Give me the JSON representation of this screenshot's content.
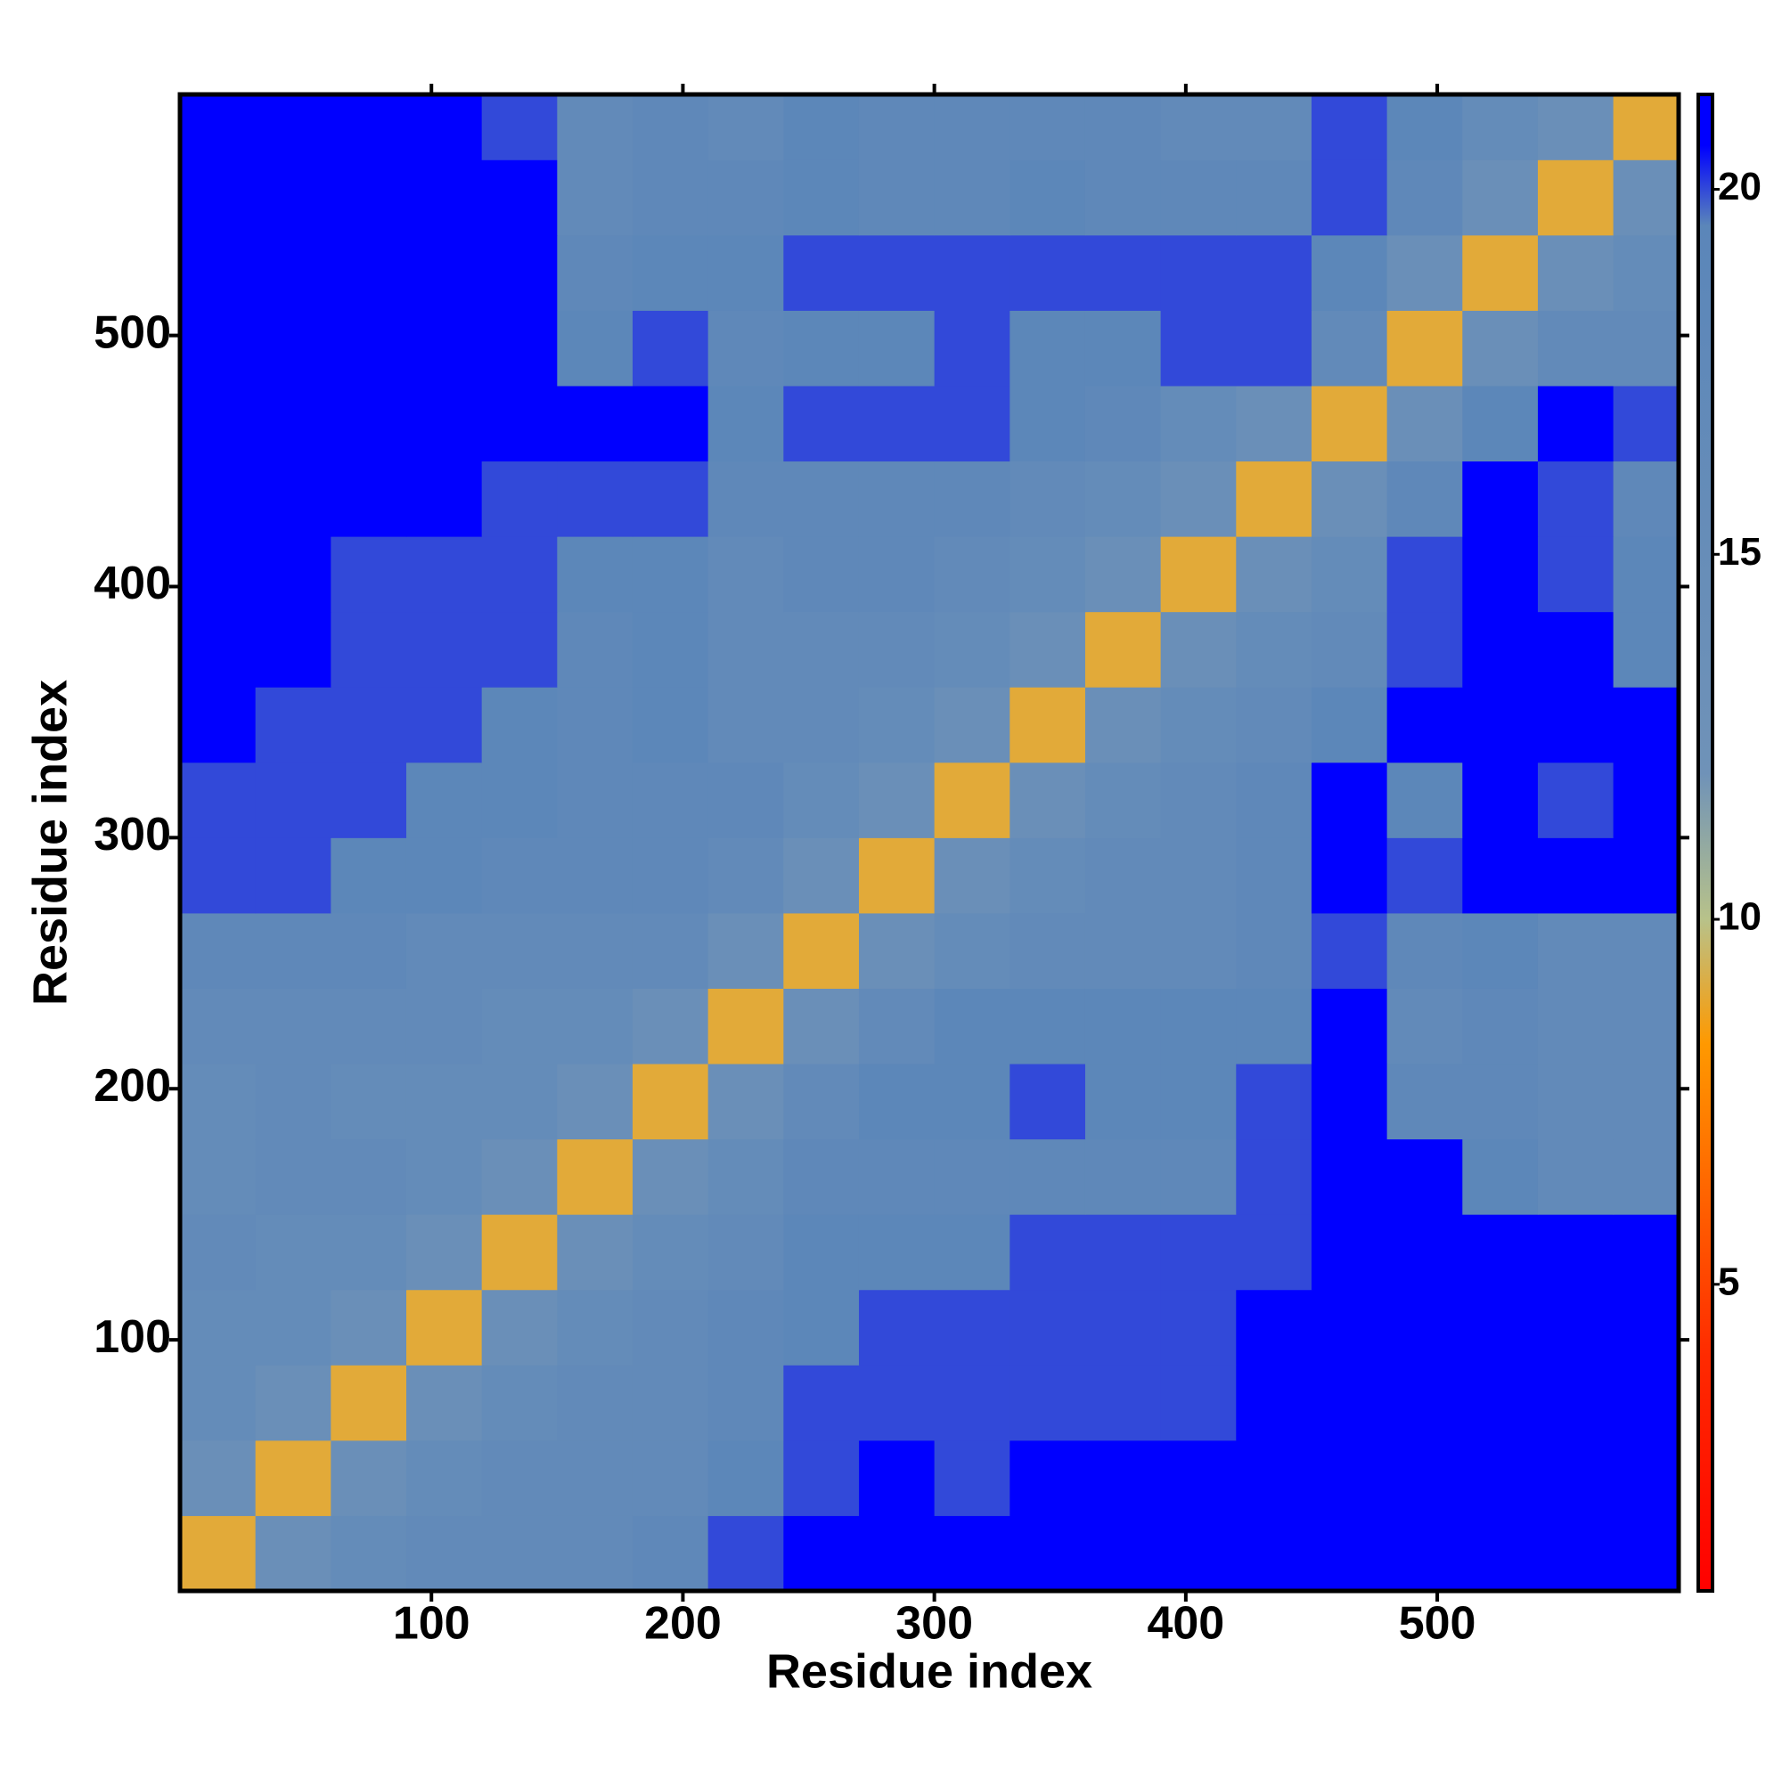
{
  "chart_data": {
    "type": "heatmap",
    "x_label": "Residue index",
    "y_label": "Residue index",
    "xlim": [
      0,
      596
    ],
    "ylim": [
      0,
      596
    ],
    "xticks": [
      100,
      200,
      300,
      400,
      500
    ],
    "yticks": [
      100,
      200,
      300,
      400,
      500
    ],
    "x_edges": [
      0,
      30,
      60,
      90,
      120,
      150,
      180,
      210,
      240,
      270,
      300,
      330,
      360,
      390,
      420,
      450,
      480,
      510,
      540,
      570,
      596
    ],
    "y_edges": [
      0,
      30,
      60,
      90,
      120,
      150,
      180,
      210,
      240,
      270,
      300,
      330,
      360,
      390,
      420,
      450,
      480,
      510,
      540,
      570,
      596
    ],
    "z": [
      [
        9,
        14,
        16,
        17,
        17,
        17,
        18,
        20,
        21,
        21,
        21,
        21,
        21,
        21,
        21,
        21,
        21,
        21,
        21,
        21
      ],
      [
        14,
        9,
        14,
        16,
        17,
        17,
        17,
        19,
        20,
        21,
        20,
        21,
        21,
        21,
        21,
        21,
        21,
        21,
        21,
        21
      ],
      [
        16,
        14,
        9,
        14,
        16,
        17,
        17,
        18,
        20,
        20,
        20,
        20,
        20,
        20,
        21,
        21,
        21,
        21,
        21,
        21
      ],
      [
        16,
        16,
        14,
        9,
        14,
        16,
        17,
        18,
        19,
        20,
        20,
        20,
        20,
        20,
        21,
        21,
        21,
        21,
        21,
        21
      ],
      [
        17,
        16,
        16,
        14,
        9,
        14,
        16,
        17,
        19,
        19,
        19,
        20,
        20,
        20,
        20,
        21,
        21,
        21,
        21,
        21
      ],
      [
        16,
        17,
        17,
        16,
        14,
        9,
        14,
        16,
        18,
        18,
        18,
        18,
        18,
        18,
        20,
        21,
        21,
        19,
        17,
        17
      ],
      [
        16,
        17,
        16,
        16,
        16,
        14,
        9,
        14,
        17,
        19,
        19,
        20,
        19,
        19,
        20,
        21,
        18,
        18,
        17,
        17
      ],
      [
        17,
        17,
        17,
        17,
        16,
        16,
        14,
        9,
        14,
        17,
        19,
        19,
        19,
        19,
        19,
        21,
        17,
        18,
        17,
        17
      ],
      [
        18,
        18,
        18,
        17,
        17,
        17,
        17,
        14,
        9,
        14,
        16,
        17,
        17,
        17,
        18,
        20,
        18,
        19,
        17,
        17
      ],
      [
        20,
        20,
        19,
        19,
        18,
        18,
        18,
        17,
        14,
        9,
        14,
        16,
        17,
        17,
        18,
        21,
        20,
        21,
        21,
        21
      ],
      [
        20,
        20,
        20,
        19,
        19,
        18,
        18,
        18,
        16,
        14,
        9,
        14,
        16,
        17,
        18,
        21,
        19,
        21,
        20,
        21
      ],
      [
        21,
        20,
        20,
        20,
        19,
        18,
        19,
        17,
        17,
        16,
        14,
        9,
        14,
        16,
        17,
        19,
        21,
        21,
        21,
        21
      ],
      [
        21,
        21,
        20,
        20,
        20,
        18,
        19,
        17,
        17,
        17,
        16,
        14,
        9,
        14,
        16,
        17,
        20,
        21,
        21,
        19
      ],
      [
        21,
        21,
        20,
        20,
        20,
        19,
        19,
        17,
        18,
        18,
        17,
        16,
        14,
        9,
        14,
        16,
        20,
        21,
        20,
        19
      ],
      [
        21,
        21,
        21,
        21,
        20,
        20,
        20,
        18,
        18,
        18,
        18,
        17,
        16,
        14,
        9,
        14,
        18,
        21,
        20,
        18
      ],
      [
        21,
        21,
        21,
        21,
        21,
        21,
        21,
        19,
        20,
        20,
        20,
        19,
        18,
        16,
        14,
        9,
        14,
        19,
        21,
        20
      ],
      [
        21,
        21,
        21,
        21,
        21,
        19,
        20,
        18,
        19,
        19,
        20,
        19,
        19,
        20,
        20,
        17,
        9,
        14,
        17,
        17
      ],
      [
        21,
        21,
        21,
        21,
        21,
        18,
        19,
        19,
        20,
        20,
        20,
        20,
        20,
        20,
        20,
        19,
        14,
        9,
        14,
        16
      ],
      [
        21,
        21,
        21,
        21,
        21,
        17,
        18,
        18,
        19,
        18,
        18,
        19,
        18,
        18,
        18,
        20,
        18,
        14,
        9,
        14
      ],
      [
        21,
        21,
        21,
        21,
        20,
        17,
        18,
        17,
        19,
        18,
        18,
        18,
        18,
        17,
        17,
        20,
        19,
        16,
        14,
        9
      ]
    ],
    "clim": [
      0.8,
      21.3
    ],
    "cticks": [
      5,
      10,
      15,
      20
    ],
    "colorscale": [
      [
        0.8,
        "#ff0000"
      ],
      [
        4,
        "#ff2a00"
      ],
      [
        8.3,
        "#ff9900"
      ],
      [
        10,
        "#b8c28a"
      ],
      [
        12,
        "#6f92b8"
      ],
      [
        19.5,
        "#5b86b9"
      ],
      [
        20.6,
        "#0000ff"
      ],
      [
        21.3,
        "#0000ff"
      ]
    ]
  }
}
